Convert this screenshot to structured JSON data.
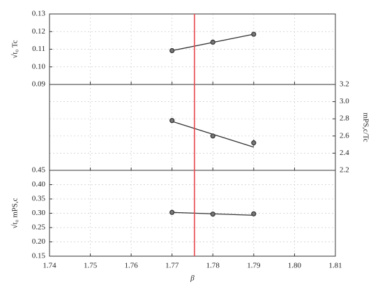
{
  "chart_data": [
    {
      "type": "line",
      "ylabel": "√t₀ Tc",
      "xlim": [
        1.74,
        1.81
      ],
      "ylim": [
        0.09,
        0.13
      ],
      "yticks": [
        0.09,
        {
          "value": 0.1,
          "label": "0.10"
        },
        0.11,
        0.12,
        0.13
      ],
      "yaxis": "left",
      "grid": true,
      "series": [
        {
          "color": "#333333",
          "x": [
            1.77,
            1.78,
            1.79
          ],
          "values": [
            0.1092,
            0.114,
            0.1185
          ],
          "errors": [
            0.0005,
            0.0005,
            0.0006
          ]
        }
      ],
      "fit": {
        "x": [
          1.77,
          1.79
        ],
        "values": [
          0.1092,
          0.1185
        ],
        "color": "#333333"
      }
    },
    {
      "type": "line",
      "ylabel": "mPS,c/Tc",
      "xlim": [
        1.74,
        1.81
      ],
      "ylim": [
        2.2,
        3.2
      ],
      "yticks": [
        2.2,
        2.4,
        2.6,
        2.8,
        {
          "value": 3.0,
          "label": "3.0"
        },
        3.2
      ],
      "yaxis": "right",
      "grid": true,
      "series": [
        {
          "color": "#333333",
          "x": [
            1.77,
            1.78,
            1.79
          ],
          "values": [
            2.78,
            2.6,
            2.52
          ],
          "errors": [
            0.02,
            0.02,
            0.04
          ]
        }
      ],
      "fit": {
        "x": [
          1.77,
          1.79
        ],
        "values": [
          2.77,
          2.47
        ],
        "color": "#333333"
      }
    },
    {
      "type": "line",
      "ylabel": "√t₀ mPS,c",
      "xlabel": "β",
      "xlim": [
        1.74,
        1.81
      ],
      "ylim": [
        0.15,
        0.45
      ],
      "xticks": [
        1.74,
        1.75,
        1.76,
        1.77,
        1.78,
        1.79,
        {
          "value": 1.8,
          "label": "1.80"
        },
        1.81
      ],
      "yticks": [
        0.15,
        {
          "value": 0.2,
          "label": "0.20"
        },
        0.25,
        {
          "value": 0.3,
          "label": "0.30"
        },
        0.35,
        {
          "value": 0.4,
          "label": "0.40"
        },
        0.45
      ],
      "yaxis": "left",
      "grid": true,
      "series": [
        {
          "color": "#333333",
          "x": [
            1.77,
            1.78,
            1.79
          ],
          "values": [
            0.303,
            0.297,
            0.298
          ],
          "errors": [
            0.004,
            0.004,
            0.004
          ]
        }
      ],
      "fit": {
        "x": [
          1.77,
          1.79
        ],
        "values": [
          0.303,
          0.293
        ],
        "color": "#333333"
      },
      "vline": {
        "value": 1.7755,
        "color": "#e8474c"
      }
    }
  ]
}
